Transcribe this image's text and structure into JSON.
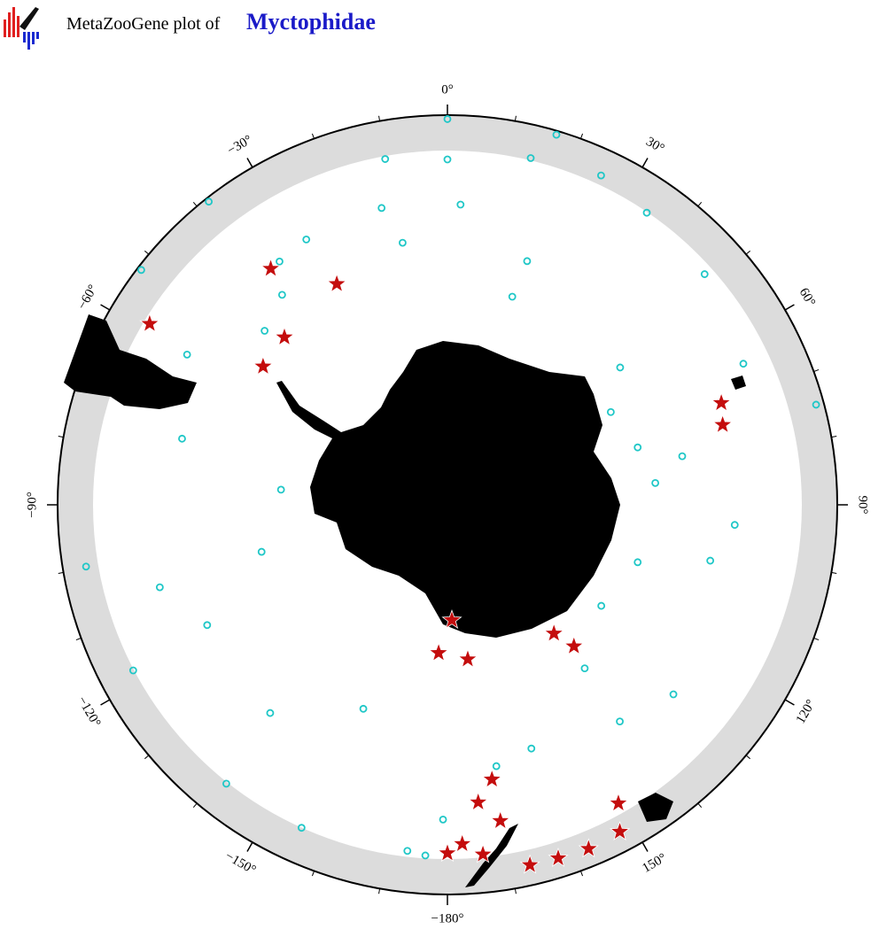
{
  "header": {
    "title": "MetaZooGene plot of",
    "taxon": "Myctophidae"
  },
  "chart_data": {
    "type": "map",
    "projection": "south-polar-stereographic",
    "ylim": [
      -90,
      -30
    ],
    "xticks": [
      {
        "value": 0,
        "label": "0°"
      },
      {
        "value": 30,
        "label": "30°"
      },
      {
        "value": 60,
        "label": "60°"
      },
      {
        "value": 90,
        "label": "90°"
      },
      {
        "value": 120,
        "label": "120°"
      },
      {
        "value": 150,
        "label": "150°"
      },
      {
        "value": 180,
        "label": "−180°"
      },
      {
        "value": -150,
        "label": "−150°"
      },
      {
        "value": -120,
        "label": "−120°"
      },
      {
        "value": -90,
        "label": "−90°"
      },
      {
        "value": -60,
        "label": "−60°"
      },
      {
        "value": -30,
        "label": "−30°"
      }
    ],
    "circles": {
      "color": "#1fc7c7",
      "lon": [
        0,
        -10.2,
        0,
        13.5,
        25,
        16.4,
        2.5,
        -12.5,
        -9.7,
        18.1,
        17.3,
        34.3,
        48.1,
        64.5,
        74.8,
        51.5,
        60.4,
        73.2,
        84,
        78.3,
        94,
        102,
        106.8,
        123.3,
        140,
        141.5,
        130,
        161,
        169.4,
        -179.2,
        -173.4,
        -176.4,
        -157.6,
        -139.6,
        -116.6,
        -106,
        -99.7,
        -117.8,
        -141.6,
        -155.7,
        -84.8,
        -104.2,
        -60,
        -76,
        -38.2,
        -52.5,
        -34.6,
        -28,
        -38.2,
        -46.4
      ],
      "lat": [
        -30.5,
        -35,
        -35.8,
        -34.3,
        -33.4,
        -30.5,
        -42,
        -41.5,
        -47,
        -48.4,
        -54.2,
        -34.7,
        -35.8,
        -38.2,
        -31,
        -53.8,
        -58.9,
        -57.2,
        -55.6,
        -50.9,
        -43.8,
        -46.6,
        -57.2,
        -59.5,
        -54.9,
        -45.4,
        -42.8,
        -48.2,
        -47,
        -40,
        -35.4,
        -35,
        -53.8,
        -45.9,
        -46.6,
        -42.2,
        -33,
        -34.5,
        -34.4,
        -34.6,
        -62.2,
        -58.3,
        -42,
        -45.9,
        -30.5,
        -30.5,
        -42.7,
        -42,
        -46.8,
        -49
      ]
    },
    "stars": {
      "color": "#c40d0d",
      "lon": [
        -36.8,
        -26.6,
        -44.2,
        -53.1,
        -58.7,
        69.6,
        73.8,
        177.8,
        -176.6,
        172.5,
        140.4,
        138.2,
        170.8,
        170.5,
        174.1,
        180,
        174.2,
        167.1,
        162.6,
        157.7,
        152.2,
        150.2,
        177.5
      ],
      "lat": [
        -42.8,
        -49.8,
        -51.8,
        -52.3,
        -35.4,
        -43.2,
        -44,
        -70.6,
        -65.2,
        -64,
        -62.2,
        -58.6,
        -45.2,
        -39.2,
        -42.2,
        -35.4,
        -35,
        -32.6,
        -32.5,
        -32.3,
        -32.6,
        -36,
        -36.6
      ]
    }
  }
}
